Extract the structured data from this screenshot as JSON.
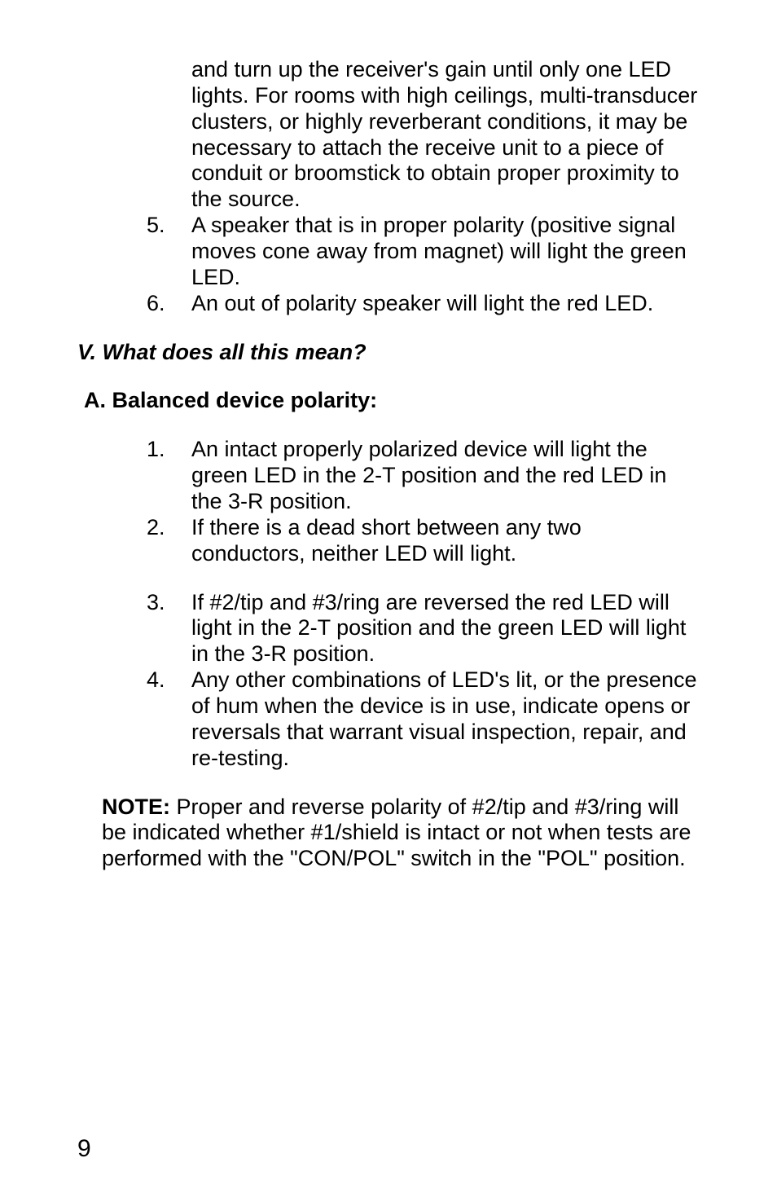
{
  "body": {
    "top_list": [
      {
        "num": "",
        "text": "and turn up the receiver's gain until only one LED lights.  For rooms with high ceilings, multi-transducer clusters, or highly reverberant conditions, it may be necessary to attach the receive unit to a piece of conduit or broomstick to obtain proper proximity to the source."
      },
      {
        "num": "5.",
        "text": "A speaker that is in proper polarity (positive signal moves cone away from magnet) will light the green LED."
      },
      {
        "num": "6.",
        "text": "An out of polarity speaker will light the red LED."
      }
    ],
    "section_heading": "V. What does all this mean?",
    "sub_heading": "A.  Balanced device polarity:",
    "sub_list": [
      {
        "num": "1.",
        "text": "An intact properly polarized device will light the green LED in the 2-T position and the red LED in the 3-R position."
      },
      {
        "num": "2.",
        "text": "If there is a dead short between any two conductors, neither LED will light."
      },
      {
        "num": "3.",
        "text": "If #2/tip and #3/ring are reversed the red LED will light in the 2-T position and the green LED will light in the 3-R position."
      },
      {
        "num": "4.",
        "text": "Any other combinations of LED's lit, or the presence of hum when the device is in use, indicate opens or reversals that warrant visual inspection, repair, and re-testing."
      }
    ],
    "note_label": "NOTE:",
    "note_text": " Proper and reverse polarity of #2/tip and #3/ring will be indicated whether #1/shield is intact or not when tests are performed with the \"CON/POL\" switch in the \"POL\" position.",
    "page_number": "9"
  },
  "colors": {
    "background": "#ffffff",
    "text": "#000000"
  },
  "typography": {
    "body_fontsize": 27,
    "page_number_fontsize": 30,
    "line_height": 1.18
  }
}
